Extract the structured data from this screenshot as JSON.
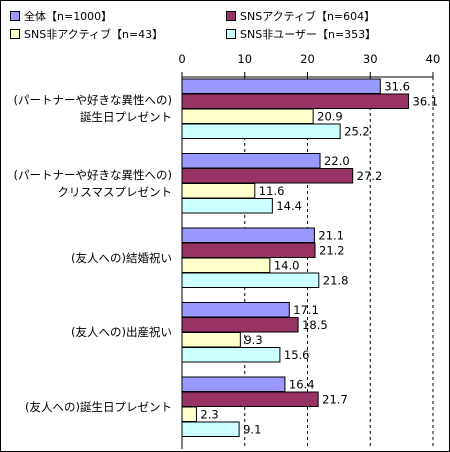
{
  "chart_data": {
    "type": "bar",
    "orientation": "horizontal",
    "xlim": [
      0,
      40
    ],
    "xticks": [
      "0",
      "10",
      "20",
      "30",
      "40"
    ],
    "grid": true,
    "legend_position": "top",
    "categories": [
      [
        "(パートナーや好きな異性への)",
        "誕生日プレゼント"
      ],
      [
        "(パートナーや好きな異性への)",
        "クリスマスプレゼント"
      ],
      [
        "(友人への)結婚祝い"
      ],
      [
        "(友人への)出産祝い"
      ],
      [
        "(友人への)誕生日プレゼント"
      ]
    ],
    "series": [
      {
        "name": "全体【n=1000】",
        "color": "#9999ff",
        "values": [
          31.6,
          22.0,
          21.1,
          17.1,
          16.4
        ],
        "labels": [
          "31.6",
          "22.0",
          "21.1",
          "17.1",
          "16.4"
        ]
      },
      {
        "name": "SNSアクティブ【n=604】",
        "color": "#993366",
        "values": [
          36.1,
          27.2,
          21.2,
          18.5,
          21.7
        ],
        "labels": [
          "36.1",
          "27.2",
          "21.2",
          "18.5",
          "21.7"
        ]
      },
      {
        "name": "SNS非アクティブ【n=43】",
        "color": "#ffffcc",
        "values": [
          20.9,
          11.6,
          14.0,
          9.3,
          2.3
        ],
        "labels": [
          "20.9",
          "11.6",
          "14.0",
          "9.3",
          "2.3"
        ]
      },
      {
        "name": "SNS非ユーザー【n=353】",
        "color": "#ccffff",
        "values": [
          25.2,
          14.4,
          21.8,
          15.6,
          9.1
        ],
        "labels": [
          "25.2",
          "14.4",
          "21.8",
          "15.6",
          "9.1"
        ]
      }
    ]
  }
}
